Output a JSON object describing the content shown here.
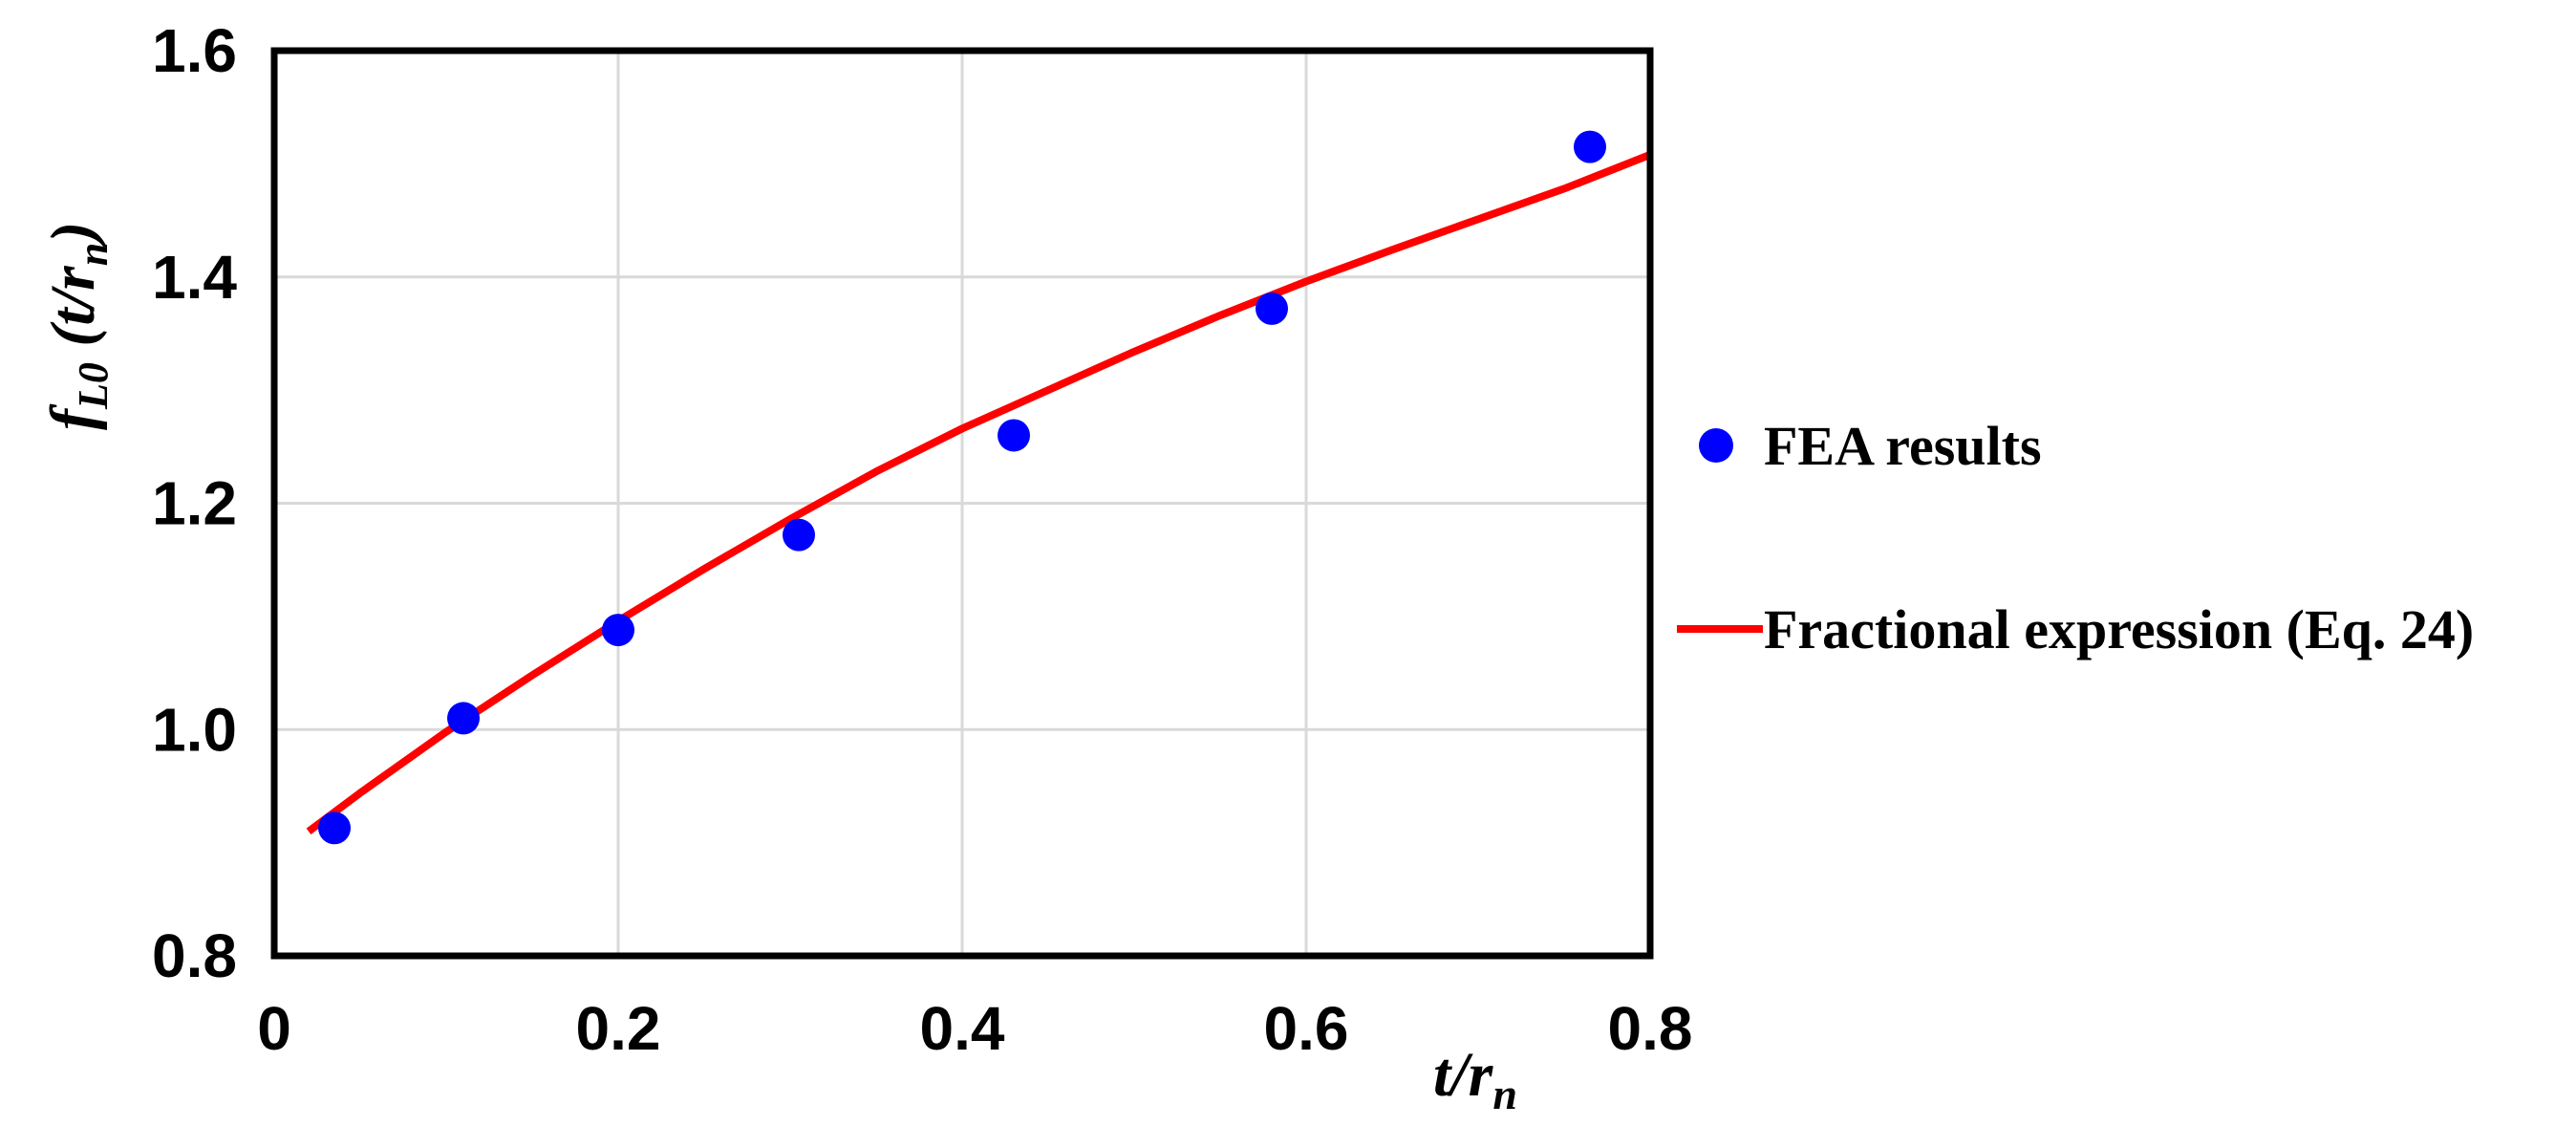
{
  "chart_data": {
    "type": "scatter",
    "xlim": [
      0,
      0.8
    ],
    "ylim": [
      0.8,
      1.6
    ],
    "x_ticks": [
      "0",
      "0.2",
      "0.4",
      "0.6",
      "0.8"
    ],
    "y_ticks": [
      "0.8",
      "1.0",
      "1.2",
      "1.4",
      "1.6"
    ],
    "x_tick_values": [
      0,
      0.2,
      0.4,
      0.6,
      0.8
    ],
    "y_tick_values": [
      0.8,
      1.0,
      1.2,
      1.4,
      1.6
    ],
    "grid": true,
    "xlabel": {
      "main": "t/r",
      "sub": "n"
    },
    "ylabel": {
      "f": "f",
      "fsub": "L0",
      "open": " (t/r",
      "sub": "n",
      "close": ")"
    },
    "legend_position": "right",
    "series": [
      {
        "name": "FEA results",
        "type": "scatter",
        "color": "#0000ff",
        "x": [
          0.035,
          0.11,
          0.2,
          0.305,
          0.43,
          0.58,
          0.765
        ],
        "y": [
          0.913,
          1.01,
          1.088,
          1.172,
          1.26,
          1.372,
          1.515
        ]
      },
      {
        "name": "Fractional expression (Eq. 24)",
        "type": "line",
        "color": "#ff0000",
        "x": [
          0.02,
          0.05,
          0.1,
          0.15,
          0.2,
          0.25,
          0.3,
          0.35,
          0.4,
          0.45,
          0.5,
          0.55,
          0.6,
          0.65,
          0.7,
          0.75,
          0.8
        ],
        "y": [
          0.91,
          0.944,
          0.998,
          1.048,
          1.096,
          1.142,
          1.186,
          1.228,
          1.266,
          1.3,
          1.334,
          1.366,
          1.396,
          1.424,
          1.451,
          1.478,
          1.508
        ]
      }
    ]
  }
}
